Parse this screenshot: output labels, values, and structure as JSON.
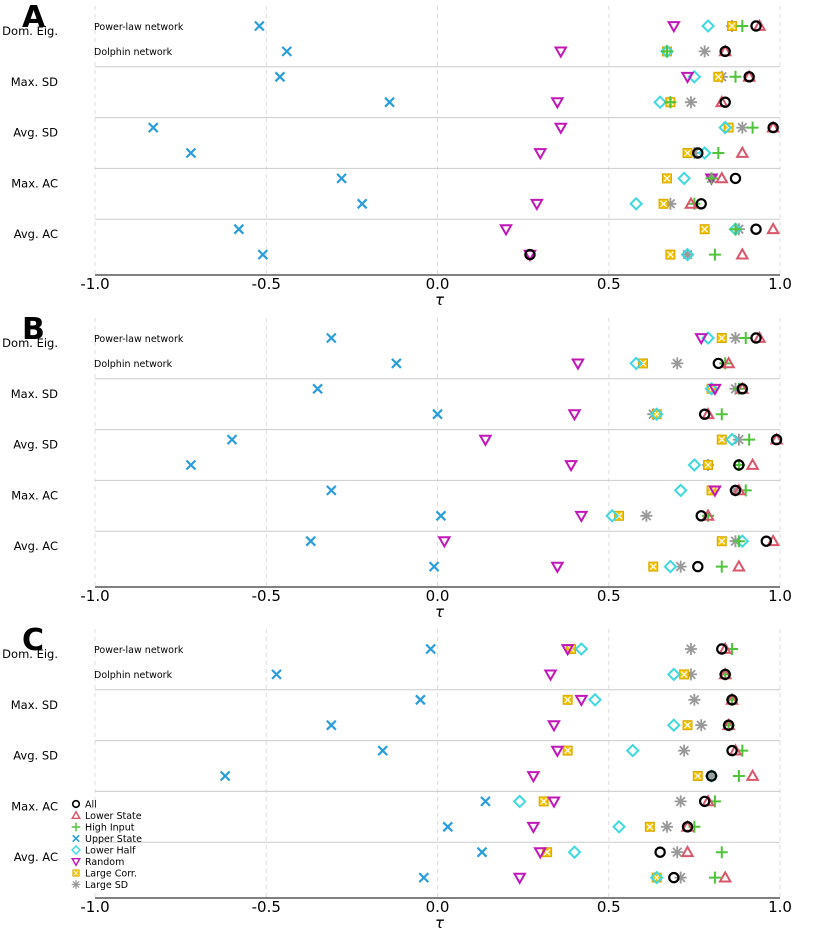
{
  "colors": {
    "all": "#000000",
    "lower_state": "#d9566b",
    "high_input": "#4fc43a",
    "upper_state": "#2b9ddb",
    "lower_half": "#3fd8de",
    "random": "#c217b8",
    "large_corr": "#f2c200",
    "large_sd": "#999999",
    "grid": "#dddddd",
    "separator": "#cccccc"
  },
  "chart_data": [
    {
      "type": "scatter",
      "panel_label": "A",
      "xlabel": "τ",
      "xlim": [
        -1.0,
        1.0
      ],
      "xticks": [
        "-1.0",
        "-0.5",
        "0.0",
        "0.5",
        "1.0"
      ],
      "groups": [
        "Dom. Eig.",
        "Max. SD",
        "Avg. SD",
        "Max. AC",
        "Avg. AC"
      ],
      "networks": [
        "Power-law network",
        "Dolphin network"
      ],
      "series_keys": [
        "all",
        "lower_state",
        "high_input",
        "upper_state",
        "lower_half",
        "random",
        "large_corr",
        "large_sd"
      ],
      "rows": [
        {
          "group": "Dom. Eig.",
          "network": "Power-law network",
          "values": {
            "all": 0.93,
            "lower_state": 0.94,
            "high_input": 0.89,
            "upper_state": -0.52,
            "lower_half": 0.79,
            "random": 0.69,
            "large_corr": 0.86,
            "large_sd": 0.86
          }
        },
        {
          "group": "Dom. Eig.",
          "network": "Dolphin network",
          "values": {
            "all": 0.84,
            "lower_state": 0.84,
            "high_input": 0.67,
            "upper_state": -0.44,
            "lower_half": 0.67,
            "random": 0.36,
            "large_corr": 0.67,
            "large_sd": 0.78
          }
        },
        {
          "group": "Max. SD",
          "network": "Power-law network",
          "values": {
            "all": 0.91,
            "lower_state": 0.91,
            "high_input": 0.87,
            "upper_state": -0.46,
            "lower_half": 0.75,
            "random": 0.73,
            "large_corr": 0.82,
            "large_sd": 0.83
          }
        },
        {
          "group": "Max. SD",
          "network": "Dolphin network",
          "values": {
            "all": 0.84,
            "lower_state": 0.83,
            "high_input": 0.68,
            "upper_state": -0.14,
            "lower_half": 0.65,
            "random": 0.35,
            "large_corr": 0.68,
            "large_sd": 0.74
          }
        },
        {
          "group": "Avg. SD",
          "network": "Power-law network",
          "values": {
            "all": 0.98,
            "lower_state": 0.98,
            "high_input": 0.92,
            "upper_state": -0.83,
            "lower_half": 0.84,
            "random": 0.36,
            "large_corr": 0.85,
            "large_sd": 0.89
          }
        },
        {
          "group": "Avg. SD",
          "network": "Dolphin network",
          "values": {
            "all": 0.76,
            "lower_state": 0.89,
            "high_input": 0.82,
            "upper_state": -0.72,
            "lower_half": 0.78,
            "random": 0.3,
            "large_corr": 0.73,
            "large_sd": 0.75
          }
        },
        {
          "group": "Max. AC",
          "network": "Power-law network",
          "values": {
            "all": 0.87,
            "lower_state": 0.83,
            "high_input": 0.8,
            "upper_state": -0.28,
            "lower_half": 0.72,
            "random": 0.8,
            "large_corr": 0.67,
            "large_sd": 0.8
          }
        },
        {
          "group": "Max. AC",
          "network": "Dolphin network",
          "values": {
            "all": 0.77,
            "lower_state": 0.74,
            "high_input": 0.75,
            "upper_state": -0.22,
            "lower_half": 0.58,
            "random": 0.29,
            "large_corr": 0.66,
            "large_sd": 0.68
          }
        },
        {
          "group": "Avg. AC",
          "network": "Power-law network",
          "values": {
            "all": 0.93,
            "lower_state": 0.98,
            "high_input": 0.87,
            "upper_state": -0.58,
            "lower_half": 0.87,
            "random": 0.2,
            "large_corr": 0.78,
            "large_sd": 0.88
          }
        },
        {
          "group": "Avg. AC",
          "network": "Dolphin network",
          "values": {
            "all": 0.27,
            "lower_state": 0.89,
            "high_input": 0.81,
            "upper_state": -0.51,
            "lower_half": 0.73,
            "random": 0.27,
            "large_corr": 0.68,
            "large_sd": 0.73
          }
        }
      ]
    },
    {
      "type": "scatter",
      "panel_label": "B",
      "xlabel": "τ",
      "xlim": [
        -1.0,
        1.0
      ],
      "xticks": [
        "-1.0",
        "-0.5",
        "0.0",
        "0.5",
        "1.0"
      ],
      "groups": [
        "Dom. Eig.",
        "Max. SD",
        "Avg. SD",
        "Max. AC",
        "Avg. AC"
      ],
      "networks": [
        "Power-law network",
        "Dolphin network"
      ],
      "series_keys": [
        "all",
        "lower_state",
        "high_input",
        "upper_state",
        "lower_half",
        "random",
        "large_corr",
        "large_sd"
      ],
      "rows": [
        {
          "group": "Dom. Eig.",
          "network": "Power-law network",
          "values": {
            "all": 0.93,
            "lower_state": 0.94,
            "high_input": 0.9,
            "upper_state": -0.31,
            "lower_half": 0.79,
            "random": 0.77,
            "large_corr": 0.83,
            "large_sd": 0.87
          }
        },
        {
          "group": "Dom. Eig.",
          "network": "Dolphin network",
          "values": {
            "all": 0.82,
            "lower_state": 0.85,
            "high_input": 0.84,
            "upper_state": -0.12,
            "lower_half": 0.58,
            "random": 0.41,
            "large_corr": 0.6,
            "large_sd": 0.7
          }
        },
        {
          "group": "Max. SD",
          "network": "Power-law network",
          "values": {
            "all": 0.89,
            "lower_state": 0.89,
            "high_input": 0.88,
            "upper_state": -0.35,
            "lower_half": 0.8,
            "random": 0.81,
            "large_corr": 0.8,
            "large_sd": 0.87
          }
        },
        {
          "group": "Max. SD",
          "network": "Dolphin network",
          "values": {
            "all": 0.78,
            "lower_state": 0.79,
            "high_input": 0.83,
            "upper_state": 0.0,
            "lower_half": 0.64,
            "random": 0.4,
            "large_corr": 0.64,
            "large_sd": 0.63
          }
        },
        {
          "group": "Avg. SD",
          "network": "Power-law network",
          "values": {
            "all": 0.99,
            "lower_state": 0.99,
            "high_input": 0.91,
            "upper_state": -0.6,
            "lower_half": 0.86,
            "random": 0.14,
            "large_corr": 0.83,
            "large_sd": 0.88
          }
        },
        {
          "group": "Avg. SD",
          "network": "Dolphin network",
          "values": {
            "all": 0.88,
            "lower_state": 0.92,
            "high_input": 0.88,
            "upper_state": -0.72,
            "lower_half": 0.75,
            "random": 0.39,
            "large_corr": 0.79,
            "large_sd": 0.79
          }
        },
        {
          "group": "Max. AC",
          "network": "Power-law network",
          "values": {
            "all": 0.87,
            "lower_state": 0.88,
            "high_input": 0.9,
            "upper_state": -0.31,
            "lower_half": 0.71,
            "random": 0.81,
            "large_corr": 0.8,
            "large_sd": 0.87
          }
        },
        {
          "group": "Max. AC",
          "network": "Dolphin network",
          "values": {
            "all": 0.77,
            "lower_state": 0.79,
            "high_input": 0.79,
            "upper_state": 0.01,
            "lower_half": 0.51,
            "random": 0.42,
            "large_corr": 0.53,
            "large_sd": 0.61
          }
        },
        {
          "group": "Avg. AC",
          "network": "Power-law network",
          "values": {
            "all": 0.96,
            "lower_state": 0.98,
            "high_input": 0.88,
            "upper_state": -0.37,
            "lower_half": 0.89,
            "random": 0.02,
            "large_corr": 0.83,
            "large_sd": 0.87
          }
        },
        {
          "group": "Avg. AC",
          "network": "Dolphin network",
          "values": {
            "all": 0.76,
            "lower_state": 0.88,
            "high_input": 0.83,
            "upper_state": -0.01,
            "lower_half": 0.68,
            "random": 0.35,
            "large_corr": 0.63,
            "large_sd": 0.71
          }
        }
      ]
    },
    {
      "type": "scatter",
      "panel_label": "C",
      "xlabel": "τ",
      "xlim": [
        -1.0,
        1.0
      ],
      "xticks": [
        "-1.0",
        "-0.5",
        "0.0",
        "0.5",
        "1.0"
      ],
      "groups": [
        "Dom. Eig.",
        "Max. SD",
        "Avg. SD",
        "Max. AC",
        "Avg. AC"
      ],
      "networks": [
        "Power-law network",
        "Dolphin network"
      ],
      "series_keys": [
        "all",
        "lower_state",
        "high_input",
        "upper_state",
        "lower_half",
        "random",
        "large_corr",
        "large_sd"
      ],
      "legend": {
        "placement": "bottom-left",
        "entries": [
          {
            "key": "all",
            "label": "All"
          },
          {
            "key": "lower_state",
            "label": "Lower State"
          },
          {
            "key": "high_input",
            "label": "High Input"
          },
          {
            "key": "upper_state",
            "label": "Upper State"
          },
          {
            "key": "lower_half",
            "label": "Lower Half"
          },
          {
            "key": "random",
            "label": "Random"
          },
          {
            "key": "large_corr",
            "label": "Large Corr."
          },
          {
            "key": "large_sd",
            "label": "Large SD"
          }
        ]
      },
      "rows": [
        {
          "group": "Dom. Eig.",
          "network": "Power-law network",
          "values": {
            "all": 0.83,
            "lower_state": 0.84,
            "high_input": 0.86,
            "upper_state": -0.02,
            "lower_half": 0.42,
            "random": 0.38,
            "large_corr": 0.39,
            "large_sd": 0.74
          }
        },
        {
          "group": "Dom. Eig.",
          "network": "Dolphin network",
          "values": {
            "all": 0.84,
            "lower_state": 0.84,
            "high_input": 0.84,
            "upper_state": -0.47,
            "lower_half": 0.69,
            "random": 0.33,
            "large_corr": 0.72,
            "large_sd": 0.74
          }
        },
        {
          "group": "Max. SD",
          "network": "Power-law network",
          "values": {
            "all": 0.86,
            "lower_state": 0.86,
            "high_input": 0.86,
            "upper_state": -0.05,
            "lower_half": 0.46,
            "random": 0.42,
            "large_corr": 0.38,
            "large_sd": 0.75
          }
        },
        {
          "group": "Max. SD",
          "network": "Dolphin network",
          "values": {
            "all": 0.85,
            "lower_state": 0.85,
            "high_input": 0.85,
            "upper_state": -0.31,
            "lower_half": 0.69,
            "random": 0.34,
            "large_corr": 0.73,
            "large_sd": 0.77
          }
        },
        {
          "group": "Avg. SD",
          "network": "Power-law network",
          "values": {
            "all": 0.86,
            "lower_state": 0.87,
            "high_input": 0.89,
            "upper_state": -0.16,
            "lower_half": 0.57,
            "random": 0.35,
            "large_corr": 0.38,
            "large_sd": 0.72
          }
        },
        {
          "group": "Avg. SD",
          "network": "Dolphin network",
          "values": {
            "all": 0.8,
            "lower_state": 0.92,
            "high_input": 0.88,
            "upper_state": -0.62,
            "lower_half": 0.8,
            "random": 0.28,
            "large_corr": 0.76,
            "large_sd": 0.8
          }
        },
        {
          "group": "Max. AC",
          "network": "Power-law network",
          "values": {
            "all": 0.78,
            "lower_state": 0.79,
            "high_input": 0.81,
            "upper_state": 0.14,
            "lower_half": 0.24,
            "random": 0.34,
            "large_corr": 0.31,
            "large_sd": 0.71
          }
        },
        {
          "group": "Max. AC",
          "network": "Dolphin network",
          "values": {
            "all": 0.73,
            "lower_state": 0.73,
            "high_input": 0.75,
            "upper_state": 0.03,
            "lower_half": 0.53,
            "random": 0.28,
            "large_corr": 0.62,
            "large_sd": 0.67
          }
        },
        {
          "group": "Avg. AC",
          "network": "Power-law network",
          "values": {
            "all": 0.65,
            "lower_state": 0.73,
            "high_input": 0.83,
            "upper_state": 0.13,
            "lower_half": 0.4,
            "random": 0.3,
            "large_corr": 0.32,
            "large_sd": 0.7
          }
        },
        {
          "group": "Avg. AC",
          "network": "Dolphin network",
          "values": {
            "all": 0.69,
            "lower_state": 0.84,
            "high_input": 0.81,
            "upper_state": -0.04,
            "lower_half": 0.64,
            "random": 0.24,
            "large_corr": 0.64,
            "large_sd": 0.71
          }
        }
      ]
    }
  ]
}
